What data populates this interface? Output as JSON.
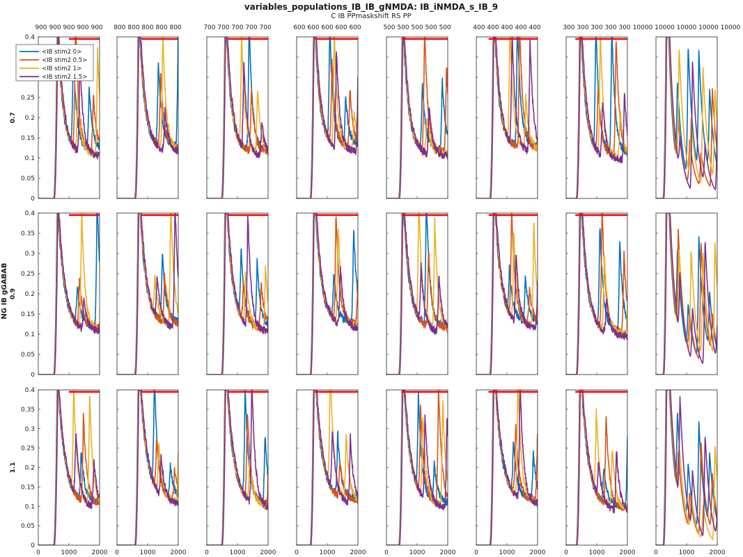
{
  "chart_data": {
    "type": "line",
    "title": "variables_populations_IB_IB_gNMDA: IB_iNMDA_s_IB_9",
    "subtitle": "C IB PPmaskshift RS PP",
    "row_axis_label": "NG IB gGABAB",
    "row_labels": [
      "0.7",
      "0.9",
      "1.1"
    ],
    "column_labels": [
      "900",
      "800",
      "700",
      "600",
      "500",
      "400",
      "300",
      "10000"
    ],
    "ylim": [
      0,
      0.4
    ],
    "yticks": [
      "0",
      "0.05",
      "0.1",
      "0.15",
      "0.2",
      "0.25",
      "0.3",
      "0.35",
      "0.4"
    ],
    "xlim": [
      0,
      2000
    ],
    "xticks": [
      "0",
      "1000",
      "2000"
    ],
    "grid": false,
    "legend_placement": "top-left",
    "series": [
      {
        "name": "<IB stim2 0>",
        "color": "#0072BD"
      },
      {
        "name": "<IB stim2 0.5>",
        "color": "#D95319"
      },
      {
        "name": "<IB stim2 1>",
        "color": "#EDB120"
      },
      {
        "name": "<IB stim2 1.5>",
        "color": "#7E2F8E"
      }
    ],
    "mask_color": "#FF0000",
    "mask_level": 0.395,
    "mask_spans": [
      [
        [
          1000,
          2000
        ],
        [
          800,
          2000
        ],
        [
          700,
          2000
        ],
        [
          600,
          2000
        ],
        [
          500,
          2000
        ],
        [
          400,
          2000
        ],
        [
          300,
          2000
        ],
        null
      ],
      [
        [
          1000,
          2000
        ],
        [
          800,
          2000
        ],
        [
          700,
          2000
        ],
        [
          600,
          2000
        ],
        [
          500,
          2000
        ],
        [
          400,
          2000
        ],
        [
          300,
          2000
        ],
        null
      ],
      [
        [
          1000,
          2000
        ],
        [
          800,
          2000
        ],
        [
          700,
          2000
        ],
        [
          600,
          2000
        ],
        [
          500,
          2000
        ],
        [
          400,
          2000
        ],
        [
          300,
          2000
        ],
        null
      ]
    ]
  }
}
